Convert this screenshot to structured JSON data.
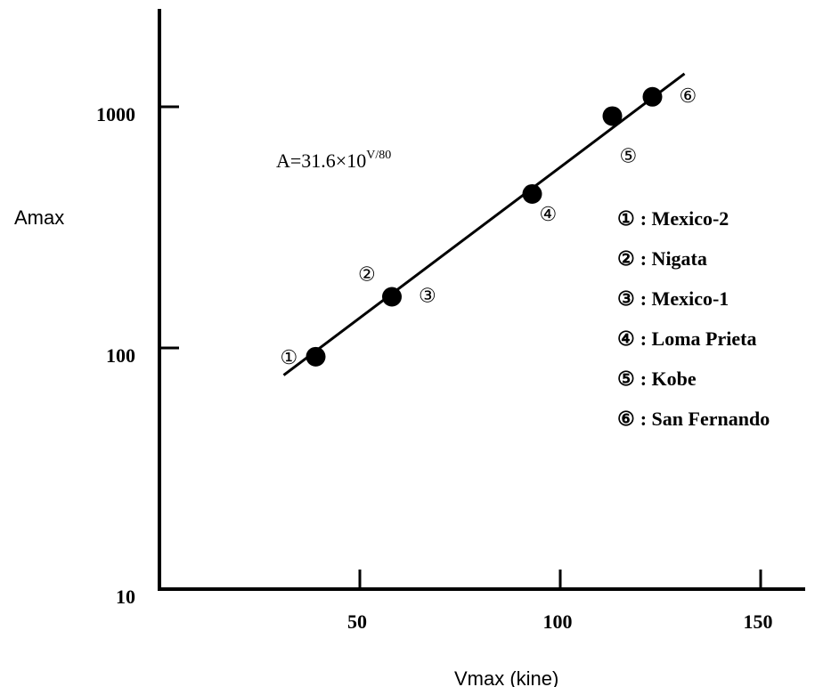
{
  "chart_data": {
    "type": "scatter",
    "title": "",
    "xlabel": "Vmax (kine)",
    "ylabel": "Amax",
    "xlim": [
      -5,
      155
    ],
    "ylim": [
      10,
      2000
    ],
    "y_scale": "log",
    "x_ticks": [
      {
        "value": 50,
        "label": "50"
      },
      {
        "value": 100,
        "label": "100"
      },
      {
        "value": 150,
        "label": "150"
      }
    ],
    "y_ticks": [
      {
        "value": 10,
        "label": "10"
      },
      {
        "value": 100,
        "label": "100"
      },
      {
        "value": 1000,
        "label": "1000"
      }
    ],
    "points": [
      {
        "marker": "①",
        "x": 39,
        "y": 92
      },
      {
        "marker": "②",
        "x": 58,
        "y": 163
      },
      {
        "marker": "③",
        "x": 58,
        "y": 163
      },
      {
        "marker": "④",
        "x": 93,
        "y": 435
      },
      {
        "marker": "⑤",
        "x": 113,
        "y": 915
      },
      {
        "marker": "⑥",
        "x": 123,
        "y": 1100
      }
    ],
    "fit_line": {
      "equation": "A=31.6×10",
      "exponent": "V/80",
      "x_start": 31,
      "x_end": 131
    },
    "legend": [
      {
        "marker": "①",
        "label": ": Mexico-2"
      },
      {
        "marker": "②",
        "label": ": Nigata"
      },
      {
        "marker": "③",
        "label": ": Mexico-1"
      },
      {
        "marker": "④",
        "label": ": Loma Prieta"
      },
      {
        "marker": "⑤",
        "label": ": Kobe"
      },
      {
        "marker": "⑥",
        "label": ": San Fernando"
      }
    ],
    "grid": false,
    "legend_position": "right"
  }
}
